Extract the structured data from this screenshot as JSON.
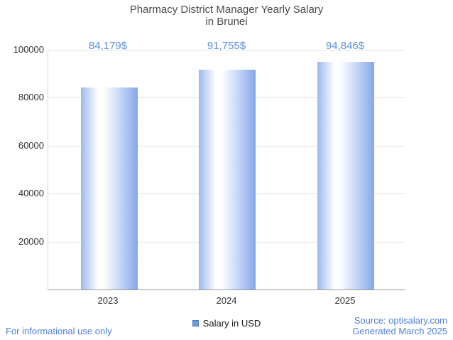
{
  "title": {
    "line1": "Pharmacy District Manager Yearly Salary",
    "line2": "in Brunei"
  },
  "chart_data": {
    "type": "bar",
    "title": "Pharmacy District Manager Yearly Salary in Brunei",
    "categories": [
      "2023",
      "2024",
      "2025"
    ],
    "values": [
      84179,
      91755,
      94846
    ],
    "value_labels": [
      "84,179$",
      "91,755$",
      "94,846$"
    ],
    "xlabel": "",
    "ylabel": "",
    "ylim": [
      0,
      100000
    ],
    "yticks": [
      20000,
      40000,
      60000,
      80000,
      100000
    ],
    "grid": true,
    "legend_position": "bottom-center"
  },
  "legend": {
    "label": "Salary in USD"
  },
  "footer": {
    "left": "For informational use only",
    "source": "Source: optisalary.com",
    "generated": "Generated March 2025"
  },
  "colors": {
    "accent_blue": "#5b8ed9",
    "footer_blue": "#4f7fd9",
    "legend_square": "#6f9ae0",
    "bar_left": "#9db9ef",
    "bar_mid": "#ffffff",
    "bar_right": "#84a7e7"
  }
}
